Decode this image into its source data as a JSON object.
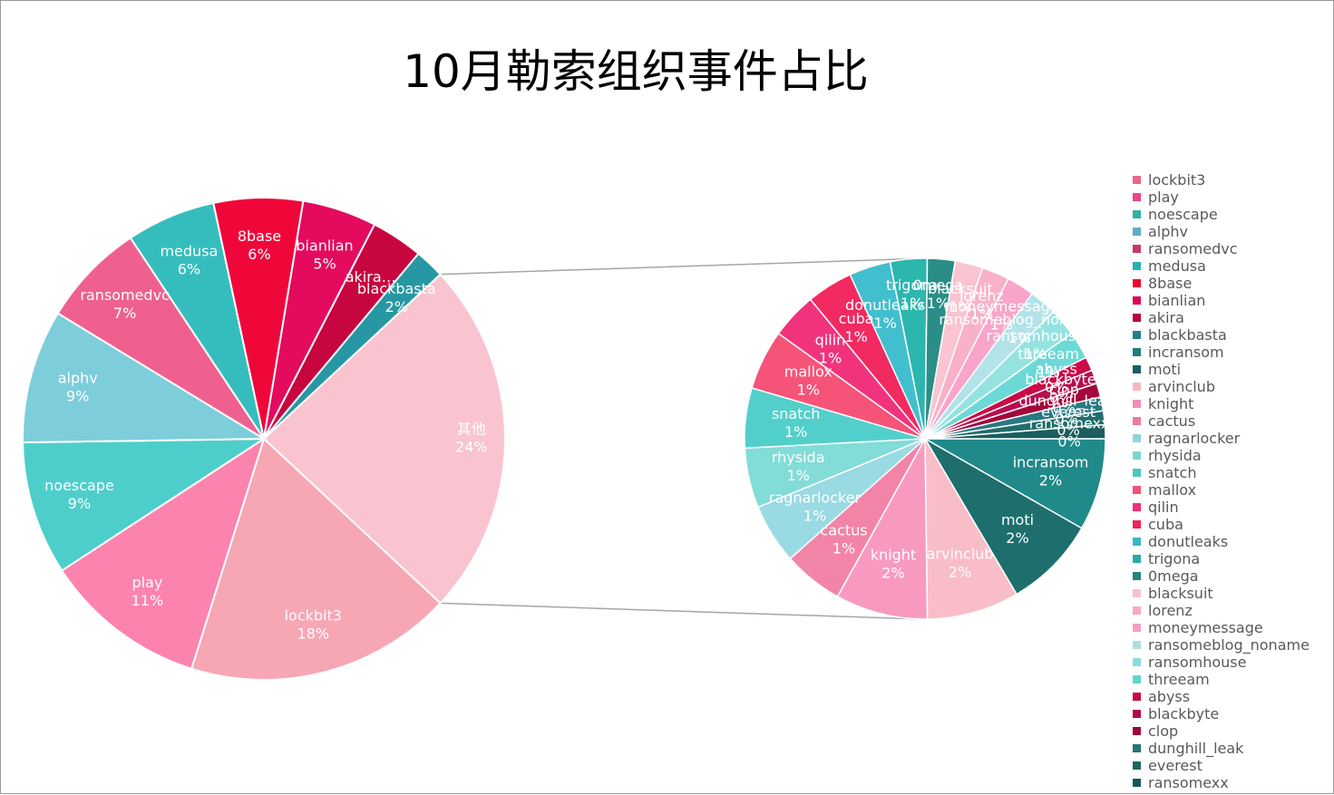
{
  "chart_data": {
    "type": "pie",
    "subtype": "pie-of-pie",
    "title": "10月勒索组织事件占比",
    "legend_position": "right",
    "other_label": "其他",
    "other_value": 24,
    "main_slices": [
      {
        "name": "lockbit3",
        "value": 18,
        "label_text": "18%",
        "color": "#F7A6B4"
      },
      {
        "name": "play",
        "value": 11,
        "label_text": "11%",
        "color": "#FC83AD"
      },
      {
        "name": "noescape",
        "value": 9,
        "label_text": "9%",
        "color": "#4ECECB"
      },
      {
        "name": "alphv",
        "value": 9,
        "label_text": "9%",
        "color": "#7ECDDA"
      },
      {
        "name": "ransomedvc",
        "value": 7,
        "label_text": "7%",
        "color": "#F0608F"
      },
      {
        "name": "medusa",
        "value": 6,
        "label_text": "6%",
        "color": "#35BDBD"
      },
      {
        "name": "8base",
        "value": 6,
        "label_text": "6%",
        "color": "#F0073A"
      },
      {
        "name": "bianlian",
        "value": 5,
        "label_text": "5%",
        "color": "#E40A5E"
      },
      {
        "name": "akira",
        "value": 3.5,
        "label_text": "akira…",
        "color": "#C7063F"
      },
      {
        "name": "blackbasta",
        "value": 2,
        "label_text": "2%",
        "color": "#2797A3"
      }
    ],
    "secondary_slices": [
      {
        "name": "incransom",
        "value": 2,
        "label_text": "2%",
        "color": "#20898A"
      },
      {
        "name": "moti",
        "value": 2,
        "label_text": "2%",
        "color": "#1D6E6C"
      },
      {
        "name": "arvinclub",
        "value": 2,
        "label_text": "2%",
        "color": "#F9BDC8"
      },
      {
        "name": "knight",
        "value": 2,
        "label_text": "2%",
        "color": "#F89AC0"
      },
      {
        "name": "cactus",
        "value": 1.3,
        "label_text": "1%",
        "color": "#F284A7"
      },
      {
        "name": "ragnarlocker",
        "value": 1.3,
        "label_text": "1%",
        "color": "#9ADAE3"
      },
      {
        "name": "rhysida",
        "value": 1.3,
        "label_text": "1%",
        "color": "#82DCD8"
      },
      {
        "name": "snatch",
        "value": 1.3,
        "label_text": "1%",
        "color": "#53CFCB"
      },
      {
        "name": "mallox",
        "value": 1.3,
        "label_text": "1%",
        "color": "#F65379"
      },
      {
        "name": "qilin",
        "value": 1,
        "label_text": "1%",
        "color": "#F1337D"
      },
      {
        "name": "cuba",
        "value": 1,
        "label_text": "1%",
        "color": "#F12A61"
      },
      {
        "name": "donutleaks",
        "value": 0.9,
        "label_text": "1%",
        "color": "#42BFCF"
      },
      {
        "name": "trigona",
        "value": 0.8,
        "label_text": "1%",
        "color": "#2BB6AE"
      },
      {
        "name": "0mega",
        "value": 0.6,
        "label_text": "1%",
        "color": "#2B8E86"
      },
      {
        "name": "blacksuit",
        "value": 0.6,
        "label_text": "1%",
        "color": "#FAC4D2"
      },
      {
        "name": "lorenz",
        "value": 0.6,
        "label_text": "1%",
        "color": "#F8B1C8"
      },
      {
        "name": "moneymessage",
        "value": 0.6,
        "label_text": "1%",
        "color": "#F8A5C9"
      },
      {
        "name": "ransomeblog_noname",
        "value": 0.6,
        "label_text": "1%",
        "color": "#B2E3E9"
      },
      {
        "name": "ransomhouse",
        "value": 0.6,
        "label_text": "1%",
        "color": "#95E3E1"
      },
      {
        "name": "threeam",
        "value": 0.6,
        "label_text": "1%",
        "color": "#6DD9D6"
      },
      {
        "name": "abyss",
        "value": 0.3,
        "label_text": "0%",
        "color": "#CC0A45"
      },
      {
        "name": "blackbyte",
        "value": 0.3,
        "label_text": "0%",
        "color": "#B70E4E"
      },
      {
        "name": "clop",
        "value": 0.3,
        "label_text": "0%",
        "color": "#A3073C"
      },
      {
        "name": "dunghill_leak",
        "value": 0.3,
        "label_text": "0%",
        "color": "#287A82"
      },
      {
        "name": "everest",
        "value": 0.3,
        "label_text": "0%",
        "color": "#206D6B"
      },
      {
        "name": "ransomexx",
        "value": 0.3,
        "label_text": "0%",
        "color": "#1A5E5E"
      }
    ],
    "legend": [
      {
        "name": "lockbit3",
        "color": "#E8678A"
      },
      {
        "name": "play",
        "color": "#E8478A"
      },
      {
        "name": "noescape",
        "color": "#2EB3A8"
      },
      {
        "name": "alphv",
        "color": "#5BB0BE"
      },
      {
        "name": "ransomedvc",
        "color": "#C8386A"
      },
      {
        "name": "medusa",
        "color": "#28B2B2"
      },
      {
        "name": "8base",
        "color": "#E8062E"
      },
      {
        "name": "bianlian",
        "color": "#D80955"
      },
      {
        "name": "akira",
        "color": "#B50840"
      },
      {
        "name": "blackbasta",
        "color": "#237F88"
      },
      {
        "name": "incransom",
        "color": "#1F7D7E"
      },
      {
        "name": "moti",
        "color": "#1A5F5F"
      },
      {
        "name": "arvinclub",
        "color": "#F7B6C3"
      },
      {
        "name": "knight",
        "color": "#F28FB8"
      },
      {
        "name": "cactus",
        "color": "#EE7AA0"
      },
      {
        "name": "ragnarlocker",
        "color": "#8ED6DE"
      },
      {
        "name": "rhysida",
        "color": "#7BD6D2"
      },
      {
        "name": "snatch",
        "color": "#4BC8C3"
      },
      {
        "name": "mallox",
        "color": "#F25077"
      },
      {
        "name": "qilin",
        "color": "#EF2E7A"
      },
      {
        "name": "cuba",
        "color": "#EE245C"
      },
      {
        "name": "donutleaks",
        "color": "#3AB6C6"
      },
      {
        "name": "trigona",
        "color": "#26AEA6"
      },
      {
        "name": "0mega",
        "color": "#24847E"
      },
      {
        "name": "blacksuit",
        "color": "#F8C0CF"
      },
      {
        "name": "lorenz",
        "color": "#F6AAC2"
      },
      {
        "name": "moneymessage",
        "color": "#F59EC4"
      },
      {
        "name": "ransomeblog_noname",
        "color": "#AADDE4"
      },
      {
        "name": "ransomhouse",
        "color": "#8ADDDB"
      },
      {
        "name": "threeam",
        "color": "#65D4D1"
      },
      {
        "name": "abyss",
        "color": "#C70A42"
      },
      {
        "name": "blackbyte",
        "color": "#B00C4A"
      },
      {
        "name": "clop",
        "color": "#9C0639"
      },
      {
        "name": "dunghill_leak",
        "color": "#26747C"
      },
      {
        "name": "everest",
        "color": "#1E6664"
      },
      {
        "name": "ransomexx",
        "color": "#185757"
      }
    ]
  }
}
